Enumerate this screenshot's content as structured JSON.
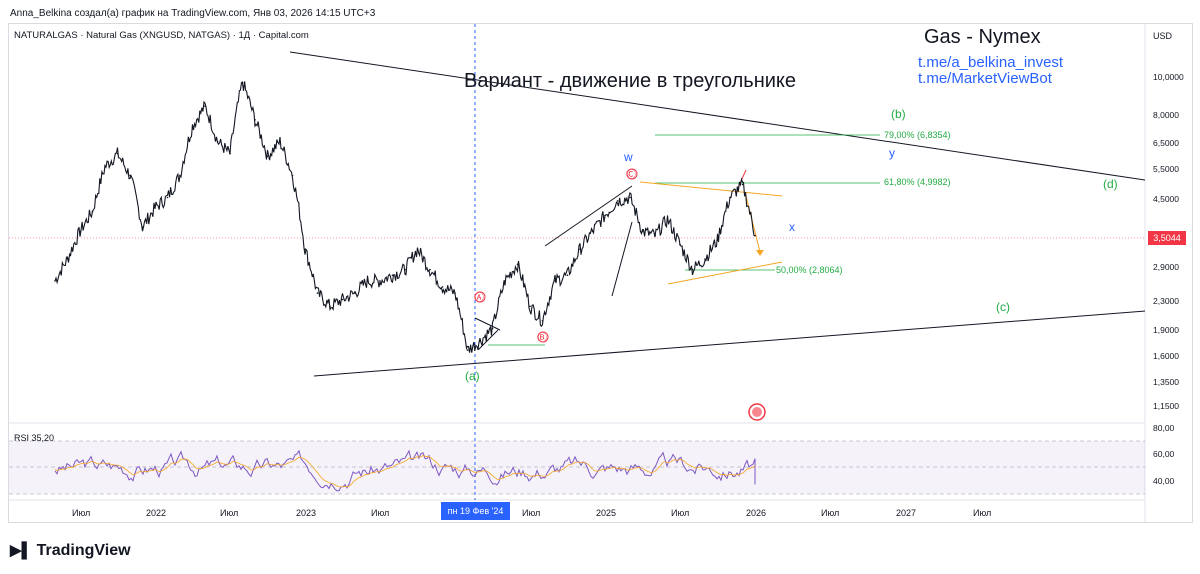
{
  "header": {
    "attribution": "Anna_Belkina создал(а) график на TradingView.com, Янв 03, 2026 14:15 UTC+3"
  },
  "symbol_line": "NATURALGAS · Natural Gas (XNGUSD, NATGAS) · 1Д · Capital.com",
  "annotations": {
    "title": "Gas - Nymex",
    "link1": "t.me/a_belkina_invest",
    "link2": "t.me/MarketViewBot",
    "variant": "Вариант - движение в треугольнике"
  },
  "currency": "USD",
  "current_price": "3,5044",
  "rsi_label": "RSI  35,20",
  "branding": "TradingView",
  "colors": {
    "accent": "#2962ff",
    "price_tag": "#f23645",
    "green": "#22ab42",
    "orange": "#f5a623",
    "rsi": "#7e57c2"
  },
  "chart_data": {
    "type": "line",
    "y_axis": {
      "scale": "log",
      "ticks": [
        "10,0000",
        "8,0000",
        "6,5000",
        "5,5000",
        "4,5000",
        "3,5044",
        "2,9000",
        "2,3000",
        "1,9000",
        "1,6000",
        "1,3500",
        "1,1500"
      ]
    },
    "x_axis": {
      "ticks": [
        "Июл",
        "2022",
        "Июл",
        "2023",
        "Июл",
        "пн 19 Фев '24",
        "Июл",
        "2025",
        "Июл",
        "2026",
        "Июл",
        "2027",
        "Июл"
      ],
      "crosshair_label": "пн 19 Фев '24"
    },
    "series": [
      {
        "values": [
          {
            "x": "2021-05",
            "y": 2.6
          },
          {
            "x": "2021-06",
            "y": 3.0
          },
          {
            "x": "2021-07",
            "y": 3.6
          },
          {
            "x": "2021-08",
            "y": 4.1
          },
          {
            "x": "2021-09",
            "y": 5.5
          },
          {
            "x": "2021-10",
            "y": 6.0
          },
          {
            "x": "2021-11",
            "y": 5.2
          },
          {
            "x": "2021-12",
            "y": 3.7
          },
          {
            "x": "2022-01",
            "y": 4.2
          },
          {
            "x": "2022-02",
            "y": 4.5
          },
          {
            "x": "2022-03",
            "y": 5.2
          },
          {
            "x": "2022-04",
            "y": 7.2
          },
          {
            "x": "2022-05",
            "y": 8.2
          },
          {
            "x": "2022-06",
            "y": 6.5
          },
          {
            "x": "2022-07",
            "y": 6.0
          },
          {
            "x": "2022-08",
            "y": 9.6
          },
          {
            "x": "2022-09",
            "y": 7.5
          },
          {
            "x": "2022-10",
            "y": 5.9
          },
          {
            "x": "2022-11",
            "y": 6.5
          },
          {
            "x": "2022-12",
            "y": 5.2
          },
          {
            "x": "2023-01",
            "y": 3.2
          },
          {
            "x": "2023-02",
            "y": 2.4
          },
          {
            "x": "2023-03",
            "y": 2.2
          },
          {
            "x": "2023-04",
            "y": 2.3
          },
          {
            "x": "2023-05",
            "y": 2.4
          },
          {
            "x": "2023-06",
            "y": 2.6
          },
          {
            "x": "2023-07",
            "y": 2.6
          },
          {
            "x": "2023-08",
            "y": 2.7
          },
          {
            "x": "2023-09",
            "y": 2.8
          },
          {
            "x": "2023-10",
            "y": 3.2
          },
          {
            "x": "2023-11",
            "y": 2.8
          },
          {
            "x": "2023-12",
            "y": 2.5
          },
          {
            "x": "2024-01",
            "y": 2.4
          },
          {
            "x": "2024-02",
            "y": 1.65
          },
          {
            "x": "2024-03",
            "y": 1.75
          },
          {
            "x": "2024-04",
            "y": 1.9
          },
          {
            "x": "2024-05",
            "y": 2.6
          },
          {
            "x": "2024-06",
            "y": 2.9
          },
          {
            "x": "2024-07",
            "y": 2.2
          },
          {
            "x": "2024-08",
            "y": 2.0
          },
          {
            "x": "2024-09",
            "y": 2.6
          },
          {
            "x": "2024-10",
            "y": 2.7
          },
          {
            "x": "2024-11",
            "y": 3.2
          },
          {
            "x": "2024-12",
            "y": 3.6
          },
          {
            "x": "2025-01",
            "y": 4.0
          },
          {
            "x": "2025-02",
            "y": 4.4
          },
          {
            "x": "2025-03",
            "y": 4.5
          },
          {
            "x": "2025-04",
            "y": 3.6
          },
          {
            "x": "2025-05",
            "y": 3.5
          },
          {
            "x": "2025-06",
            "y": 3.9
          },
          {
            "x": "2025-07",
            "y": 3.3
          },
          {
            "x": "2025-08",
            "y": 2.8
          },
          {
            "x": "2025-09",
            "y": 3.0
          },
          {
            "x": "2025-10",
            "y": 3.4
          },
          {
            "x": "2025-11",
            "y": 4.5
          },
          {
            "x": "2025-12",
            "y": 4.9
          },
          {
            "x": "2026-01",
            "y": 3.5
          }
        ]
      }
    ],
    "fib_levels": [
      {
        "label": "79,00% (6,8354)",
        "value": 6.8354
      },
      {
        "label": "61,80% (4,9982)",
        "value": 4.9982
      },
      {
        "label": "50,00% (2,8064)",
        "value": 2.8064
      }
    ],
    "wave_labels": [
      "(a)",
      "(b)",
      "(c)",
      "(d)",
      "w",
      "x",
      "y",
      "Ⓐ",
      "Ⓑ",
      "Ⓒ"
    ],
    "rsi": {
      "ticks": [
        "80,00",
        "60,00",
        "40,00"
      ],
      "value": 35.2,
      "bands": [
        70,
        30
      ]
    }
  }
}
